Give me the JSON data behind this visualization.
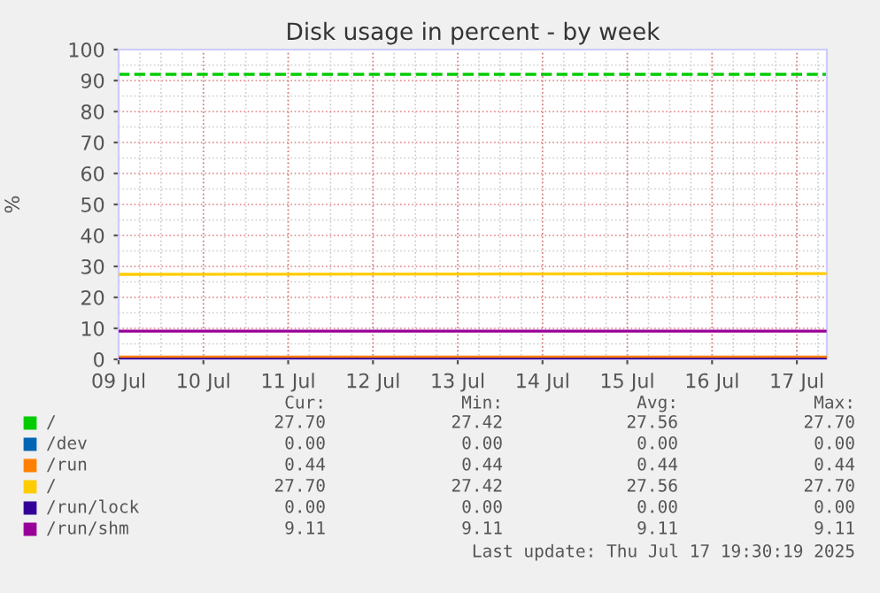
{
  "chart_data": {
    "type": "line",
    "title": "Disk usage in percent - by week",
    "ylabel": "%",
    "x": [
      "2025-07-09T00:00",
      "2025-07-17T08:00"
    ],
    "series": [
      {
        "name": "/",
        "color": "#00cc00",
        "values": [
          null,
          null
        ]
      },
      {
        "name": "/dev",
        "color": "#0066b3",
        "values": [
          null,
          null
        ]
      },
      {
        "name": "/run",
        "color": "#ff8000",
        "values": [
          0.44,
          0.44
        ]
      },
      {
        "name": "/",
        "color": "#ffcc00",
        "values": [
          27.42,
          27.7
        ]
      },
      {
        "name": "/run/lock",
        "color": "#330099",
        "values": [
          0.0,
          0.0
        ]
      },
      {
        "name": "/run/shm",
        "color": "#990099",
        "values": [
          9.11,
          9.11
        ]
      }
    ],
    "xlim": [
      "2025-07-09T00:00",
      "2025-07-17T08:30"
    ],
    "xticks": [
      {
        "value": "2025-07-09",
        "label": "09 Jul"
      },
      {
        "value": "2025-07-10",
        "label": "10 Jul"
      },
      {
        "value": "2025-07-11",
        "label": "11 Jul"
      },
      {
        "value": "2025-07-12",
        "label": "12 Jul"
      },
      {
        "value": "2025-07-13",
        "label": "13 Jul"
      },
      {
        "value": "2025-07-14",
        "label": "14 Jul"
      },
      {
        "value": "2025-07-15",
        "label": "15 Jul"
      },
      {
        "value": "2025-07-16",
        "label": "16 Jul"
      },
      {
        "value": "2025-07-17",
        "label": "17 Jul"
      }
    ],
    "ylim": [
      0,
      100
    ],
    "yticks": [
      0,
      10,
      20,
      30,
      40,
      50,
      60,
      70,
      80,
      90,
      100
    ],
    "ref_lines": [
      {
        "axis": "y",
        "value": 92,
        "color": "#00cc00",
        "line_style": "dashed"
      }
    ],
    "grid": true,
    "legend": "bottom",
    "marker": "none",
    "line_style": "solid",
    "annotations": [
      "Cur:",
      "Min:",
      "Avg:",
      "Max:",
      "27.70",
      "27.42",
      "27.56",
      "27.70",
      "0.00",
      "0.00",
      "0.00",
      "0.00",
      "0.44",
      "0.44",
      "0.44",
      "0.44",
      "27.70",
      "27.42",
      "27.56",
      "27.70",
      "0.00",
      "0.00",
      "0.00",
      "0.00",
      "9.11",
      "9.11",
      "9.11",
      "9.11",
      "Last update: Thu Jul 17 19:30:19 2025"
    ]
  }
}
